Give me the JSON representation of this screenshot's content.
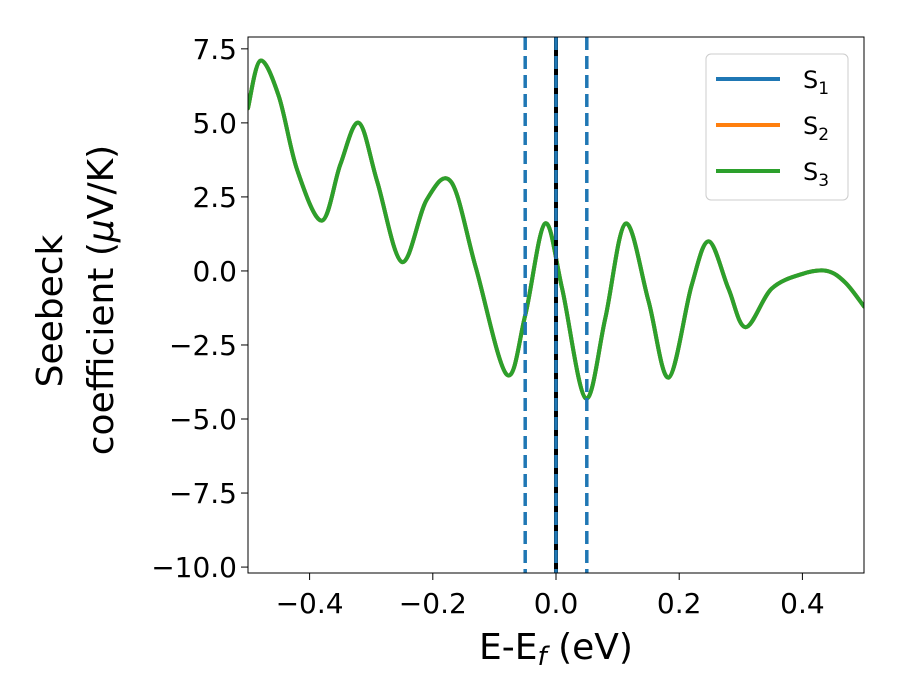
{
  "chart_data": {
    "type": "line",
    "xlabel": {
      "main": "E-E",
      "sub": "f",
      "unit": " (eV)"
    },
    "ylabel": {
      "line1": "Seebeck",
      "line2": "coefficient  (",
      "mu": "μ",
      "unit": "V/K)"
    },
    "xlim": [
      -0.5,
      0.5
    ],
    "ylim": [
      -10.2,
      7.9
    ],
    "xticks": [
      -0.4,
      -0.2,
      0.0,
      0.2,
      0.4
    ],
    "xtick_labels": [
      "−0.4",
      "−0.2",
      "0.0",
      "0.2",
      "0.4"
    ],
    "yticks": [
      -10.0,
      -7.5,
      -5.0,
      -2.5,
      0.0,
      2.5,
      5.0,
      7.5
    ],
    "ytick_labels": [
      "−10.0",
      "−7.5",
      "−5.0",
      "−2.5",
      "0.0",
      "2.5",
      "5.0",
      "7.5"
    ],
    "grid": false,
    "legend_position": "top-right",
    "series": [
      {
        "name": "S",
        "sub": "1",
        "color": "#1f77b4",
        "visible_curve": false
      },
      {
        "name": "S",
        "sub": "2",
        "color": "#ff7f0e",
        "visible_curve": false
      },
      {
        "name": "S",
        "sub": "3",
        "color": "#2ca02c",
        "visible_curve": true
      }
    ],
    "curve": {
      "x": [
        -0.5,
        -0.48,
        -0.45,
        -0.42,
        -0.38,
        -0.35,
        -0.32,
        -0.29,
        -0.25,
        -0.21,
        -0.17,
        -0.13,
        -0.08,
        -0.05,
        -0.018,
        0.01,
        0.048,
        0.08,
        0.113,
        0.15,
        0.183,
        0.22,
        0.248,
        0.28,
        0.308,
        0.35,
        0.4,
        0.44,
        0.47,
        0.5
      ],
      "y": [
        5.5,
        7.1,
        5.9,
        3.4,
        1.7,
        3.6,
        5.0,
        3.0,
        0.3,
        2.4,
        3.0,
        0.1,
        -3.5,
        -1.5,
        1.6,
        -0.6,
        -4.3,
        -1.6,
        1.6,
        -1.0,
        -3.6,
        -0.5,
        1.0,
        -0.6,
        -1.9,
        -0.6,
        -0.1,
        0.0,
        -0.4,
        -1.2
      ]
    },
    "vertical_lines": [
      {
        "x": -0.05,
        "style": "dashed",
        "color": "#1f77b4"
      },
      {
        "x": 0.05,
        "style": "dashed",
        "color": "#1f77b4"
      },
      {
        "x": 0.0,
        "style": "solid",
        "color": "#000000"
      },
      {
        "x": 0.0,
        "style": "dashed",
        "color": "#1f77b4"
      }
    ]
  }
}
